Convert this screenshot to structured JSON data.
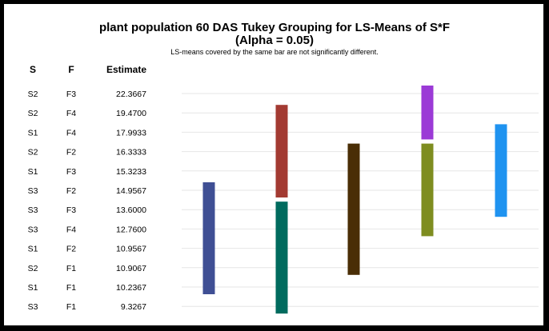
{
  "chart_data": {
    "type": "table",
    "title_line1": "plant population 60 DAS Tukey Grouping for LS-Means of S*F",
    "title_line2": "(Alpha = 0.05)",
    "subtitle": "LS-means covered by the same bar are not significantly different.",
    "headers": [
      "S",
      "F",
      "Estimate"
    ],
    "rows": [
      {
        "S": "S2",
        "F": "F3",
        "Estimate": "22.3667"
      },
      {
        "S": "S2",
        "F": "F4",
        "Estimate": "19.4700"
      },
      {
        "S": "S1",
        "F": "F4",
        "Estimate": "17.9933"
      },
      {
        "S": "S2",
        "F": "F2",
        "Estimate": "16.3333"
      },
      {
        "S": "S1",
        "F": "F3",
        "Estimate": "15.3233"
      },
      {
        "S": "S3",
        "F": "F2",
        "Estimate": "14.9567"
      },
      {
        "S": "S3",
        "F": "F3",
        "Estimate": "13.6000"
      },
      {
        "S": "S3",
        "F": "F4",
        "Estimate": "12.7600"
      },
      {
        "S": "S1",
        "F": "F2",
        "Estimate": "10.9567"
      },
      {
        "S": "S2",
        "F": "F1",
        "Estimate": "10.9067"
      },
      {
        "S": "S1",
        "F": "F1",
        "Estimate": "10.2367"
      },
      {
        "S": "S3",
        "F": "F1",
        "Estimate": "9.3267"
      }
    ],
    "bars": [
      {
        "column": 1,
        "from_row": 5,
        "to_row": 10,
        "color": "#3f4f94"
      },
      {
        "column": 2,
        "from_row": 1,
        "to_row": 5,
        "color": "#a33a32"
      },
      {
        "column": 2,
        "from_row": 6,
        "to_row": 11,
        "color": "#006b5e"
      },
      {
        "column": 3,
        "from_row": 3,
        "to_row": 9,
        "color": "#4a2e06"
      },
      {
        "column": 4,
        "from_row": 0,
        "to_row": 2,
        "color": "#9b3ad6"
      },
      {
        "column": 4,
        "from_row": 3,
        "to_row": 7,
        "color": "#7e8d20"
      },
      {
        "column": 5,
        "from_row": 2,
        "to_row": 6,
        "color": "#1f93f0"
      }
    ],
    "grid": true
  }
}
